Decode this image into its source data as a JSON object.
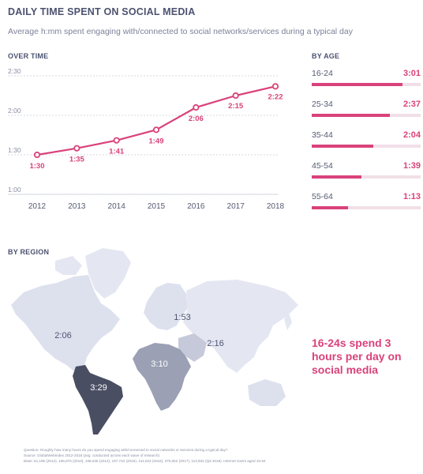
{
  "header": {
    "title": "DAILY TIME SPENT ON SOCIAL MEDIA",
    "subtitle": "Average h:mm spent engaging with/connected to social networks/services during a typical day"
  },
  "sections": {
    "over_time": "OVER TIME",
    "by_age": "BY AGE",
    "by_region": "BY REGION"
  },
  "colors": {
    "accent": "#d9427a",
    "text": "#4c5270",
    "map_light": "#dde1ee",
    "map_dark": "#4a4e63"
  },
  "chart_data": [
    {
      "type": "line",
      "title": "OVER TIME",
      "x": [
        "2012",
        "2013",
        "2014",
        "2015",
        "2016",
        "2017",
        "2018"
      ],
      "series": [
        {
          "values": [
            90,
            95,
            101,
            109,
            126,
            135,
            142
          ],
          "labels": [
            "1:30",
            "1:35",
            "1:41",
            "1:49",
            "2:06",
            "2:15",
            "2:22"
          ]
        }
      ],
      "y_ticks": [
        "1:00",
        "1:30",
        "2:00",
        "2:30"
      ],
      "ylim": [
        60,
        150
      ],
      "grid": true
    },
    {
      "type": "bar",
      "title": "BY AGE",
      "categories": [
        "16-24",
        "25-34",
        "35-44",
        "45-54",
        "55-64"
      ],
      "values": [
        181,
        157,
        124,
        99,
        73
      ],
      "labels": [
        "3:01",
        "2:37",
        "2:04",
        "1:39",
        "1:13"
      ],
      "xlim": [
        0,
        218
      ]
    }
  ],
  "map": {
    "regions": [
      {
        "name": "North America",
        "value": "2:06"
      },
      {
        "name": "Europe",
        "value": "1:53"
      },
      {
        "name": "Asia Pacific",
        "value": "2:16"
      },
      {
        "name": "Middle East & Africa",
        "value": "3:10"
      },
      {
        "name": "Latin America",
        "value": "3:29"
      }
    ]
  },
  "callout": "16-24s spend 3 hours per day on social media",
  "footnote": {
    "question": "Question: Roughly how many hours do you spend engaging with/connected to social networks or services during a typical day?",
    "source": "Source: GlobalWebIndex 2012-2018 (avg. conducted across each wave of research)",
    "base": "Base: 61,196 (2012), 156,876 (2013), 168,045 (2014), 197,734 (2015), 211,023 (2016), 370,052 (2017), 113,932 (Q3 2018). Internet Users aged 16-64"
  }
}
